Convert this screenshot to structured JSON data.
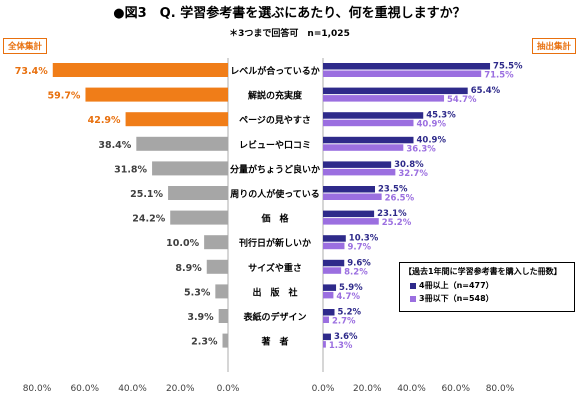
{
  "header": {
    "title": "●図3　Q. 学習参考書を選ぶにあたり、何を重視しますか？",
    "subtitle": "＊3つまで回答可　n=1,025",
    "left_tag": "全体集計",
    "right_tag": "抽出集計"
  },
  "legend": {
    "title": "【過去1年間に学習参考書を購入した冊数】",
    "items": [
      "4冊以上（n=477）",
      "3冊以下（n=548）"
    ]
  },
  "colors": {
    "highlight": "#f07d18",
    "gray": "#a6a6a6",
    "dark_purple": "#2e2a8a",
    "light_purple": "#9b6fe0",
    "highlight_text": "#e8700e",
    "axis": "#999999"
  },
  "chart_data": [
    {
      "type": "bar",
      "orientation": "horizontal",
      "direction": "right-to-left",
      "name": "全体集計",
      "categories": [
        "レベルが合っているか",
        "解説の充実度",
        "ページの見やすさ",
        "レビューや口コミ",
        "分量がちょうど良いか",
        "周りの人が使っている",
        "価　格",
        "刊行日が新しいか",
        "サイズや重さ",
        "出　版　社",
        "表紙のデザイン",
        "著　者"
      ],
      "values": [
        73.4,
        59.7,
        42.9,
        38.4,
        31.8,
        25.1,
        24.2,
        10.0,
        8.9,
        5.3,
        3.9,
        2.3
      ],
      "value_labels": [
        "73.4%",
        "59.7%",
        "42.9%",
        "38.4%",
        "31.8%",
        "25.1%",
        "24.2%",
        "10.0%",
        "8.9%",
        "5.3%",
        "3.9%",
        "2.3%"
      ],
      "highlighted_top": 3,
      "xlim": [
        0,
        80
      ],
      "xticks": [
        "80.0%",
        "60.0%",
        "40.0%",
        "20.0%",
        "0.0%"
      ]
    },
    {
      "type": "bar",
      "orientation": "horizontal",
      "name": "抽出集計",
      "categories": [
        "レベルが合っているか",
        "解説の充実度",
        "ページの見やすさ",
        "レビューや口コミ",
        "分量がちょうど良いか",
        "周りの人が使っている",
        "価　格",
        "刊行日が新しいか",
        "サイズや重さ",
        "出　版　社",
        "表紙のデザイン",
        "著　者"
      ],
      "series": [
        {
          "name": "4冊以上（n=477）",
          "values": [
            75.5,
            65.4,
            45.3,
            40.9,
            30.8,
            23.5,
            23.1,
            10.3,
            9.6,
            5.9,
            5.2,
            3.6
          ],
          "labels": [
            "75.5%",
            "65.4%",
            "45.3%",
            "40.9%",
            "30.8%",
            "23.5%",
            "23.1%",
            "10.3%",
            "9.6%",
            "5.9%",
            "5.2%",
            "3.6%"
          ]
        },
        {
          "name": "3冊以下（n=548）",
          "values": [
            71.5,
            54.7,
            40.9,
            36.3,
            32.7,
            26.5,
            25.2,
            9.7,
            8.2,
            4.7,
            2.7,
            1.3
          ],
          "labels": [
            "71.5%",
            "54.7%",
            "40.9%",
            "36.3%",
            "32.7%",
            "26.5%",
            "25.2%",
            "9.7%",
            "8.2%",
            "4.7%",
            "2.7%",
            "1.3%"
          ]
        }
      ],
      "xlim": [
        0,
        80
      ],
      "xticks": [
        "0.0%",
        "20.0%",
        "40.0%",
        "60.0%",
        "80.0%"
      ]
    }
  ]
}
